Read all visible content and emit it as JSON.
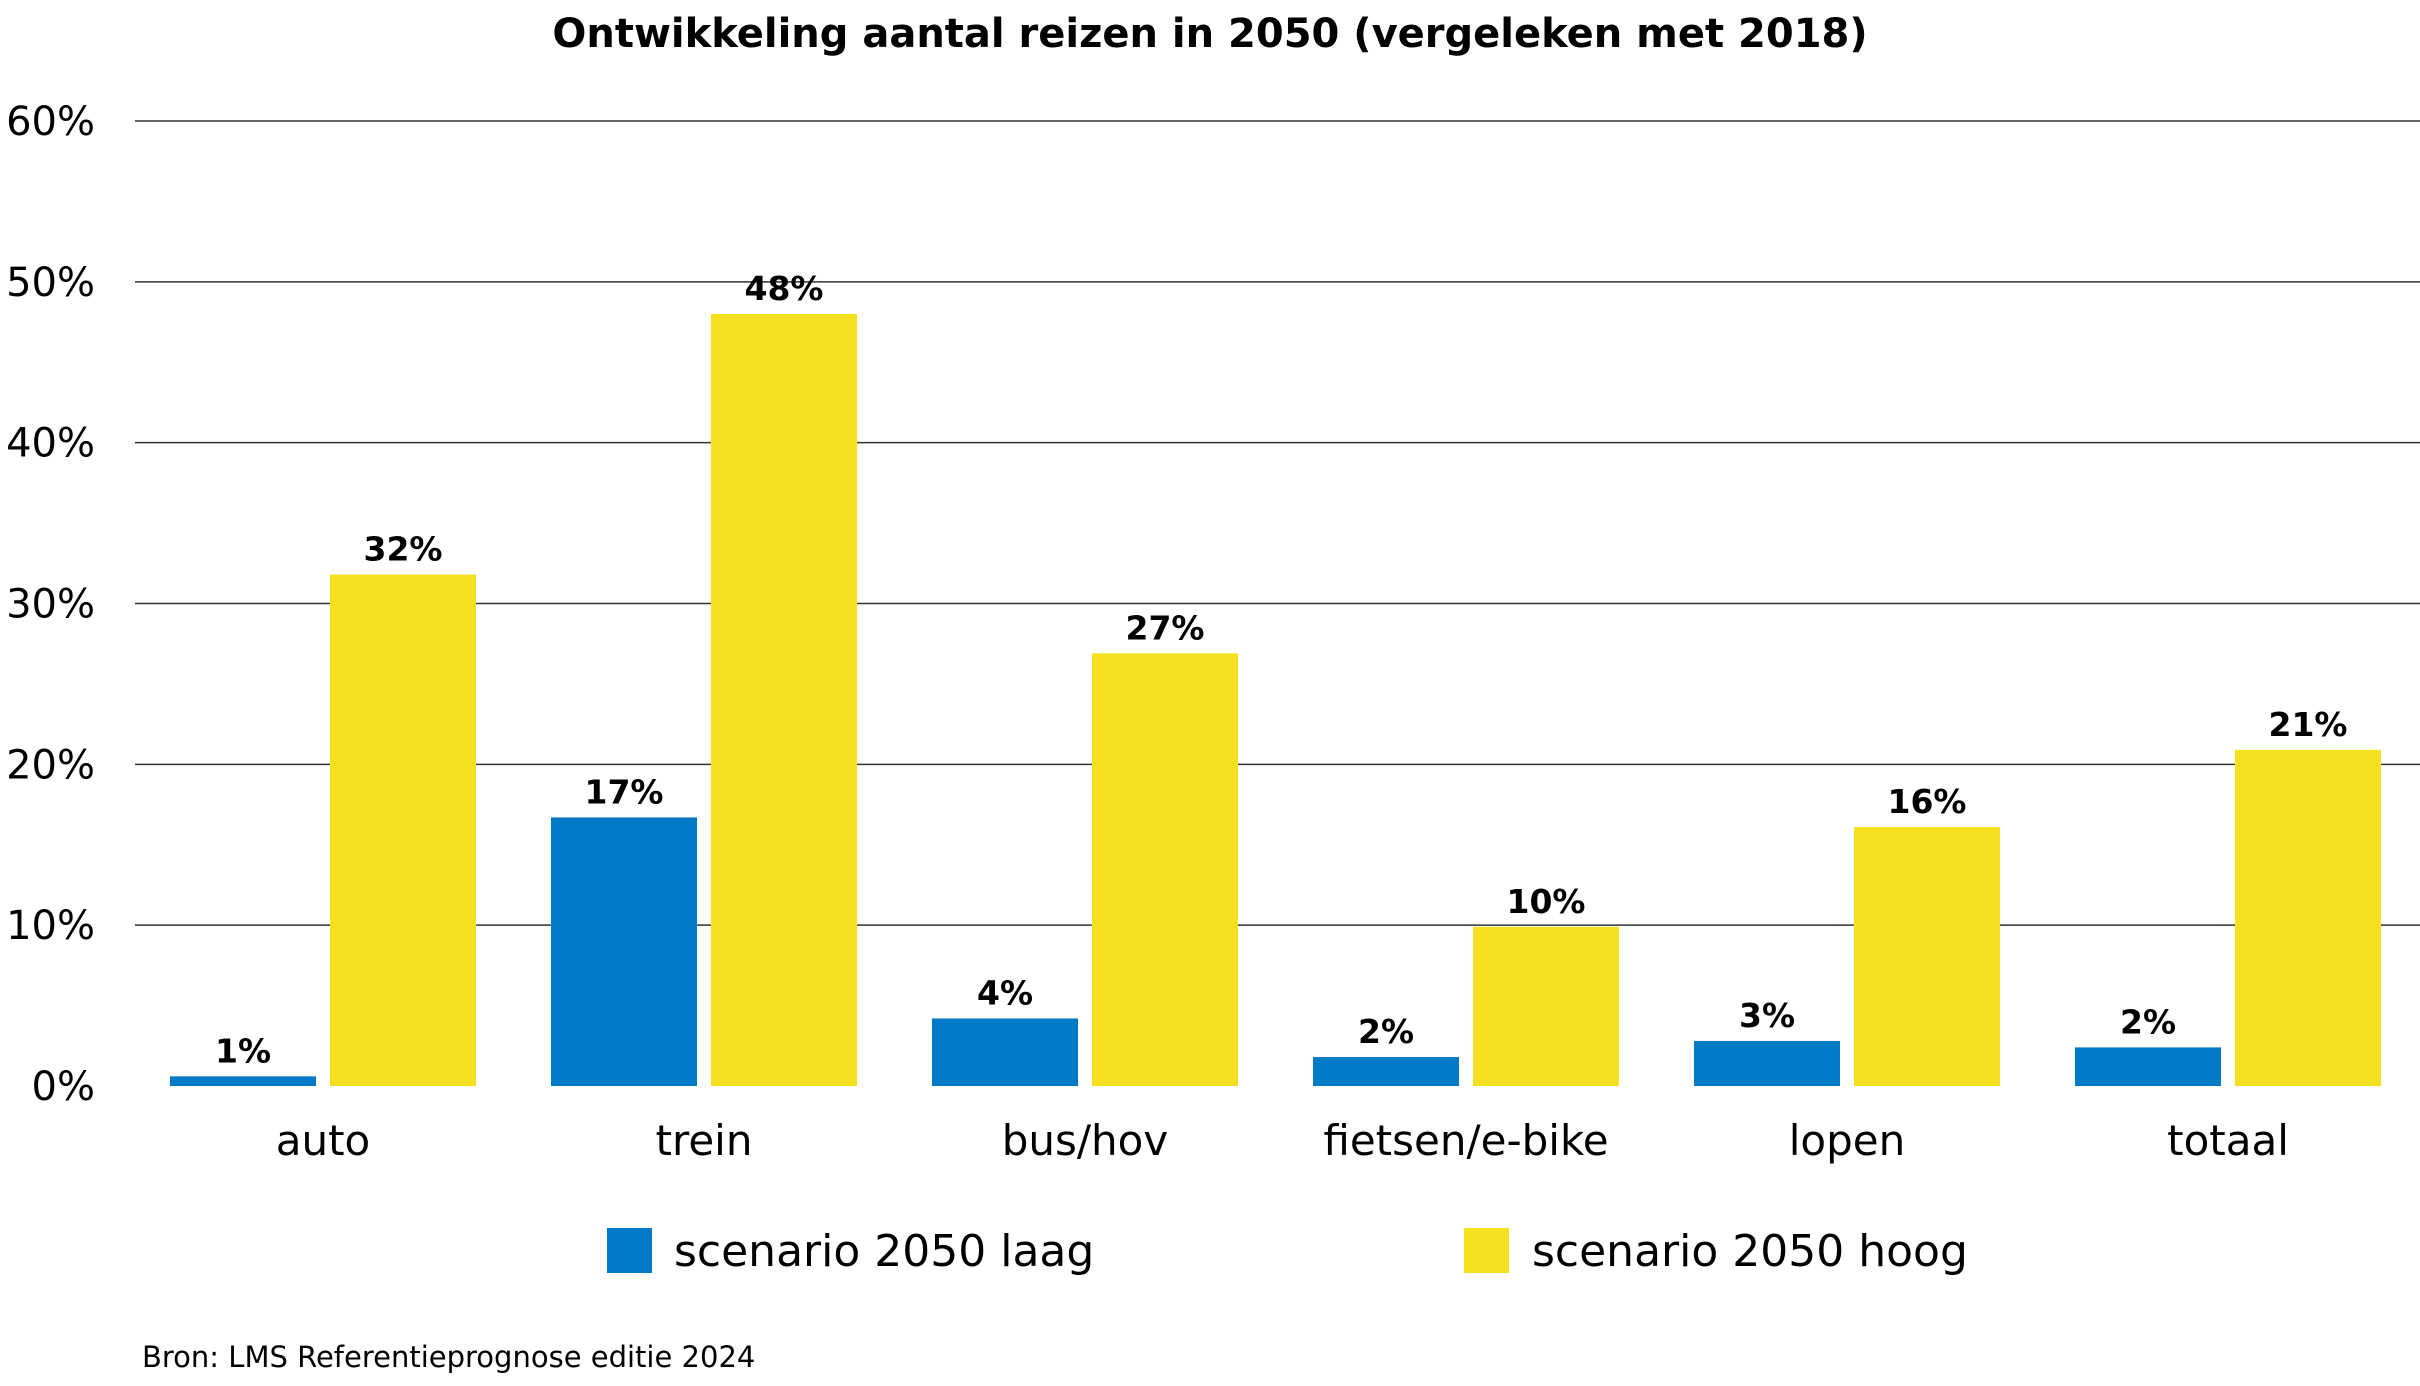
{
  "chart_data": {
    "type": "bar",
    "title": "Ontwikkeling aantal reizen in 2050 (vergeleken met 2018)",
    "categories": [
      "auto",
      "trein",
      "bus/hov",
      "fietsen/e-bike",
      "lopen",
      "totaal"
    ],
    "series": [
      {
        "name": "scenario 2050 laag",
        "color": "#0079C7",
        "values": [
          0.6,
          16.7,
          4.2,
          1.8,
          2.8,
          2.4
        ],
        "labels": [
          "1%",
          "17%",
          "4%",
          "2%",
          "3%",
          "2%"
        ]
      },
      {
        "name": "scenario 2050 hoog",
        "color": "#F5E020",
        "values": [
          31.8,
          48.0,
          26.9,
          9.9,
          16.1,
          20.9
        ],
        "labels": [
          "32%",
          "48%",
          "27%",
          "10%",
          "16%",
          "21%"
        ]
      }
    ],
    "ylim": [
      0,
      60
    ],
    "yticks": [
      0,
      10,
      20,
      30,
      40,
      50,
      60
    ],
    "ytick_labels": [
      "0%",
      "10%",
      "20%",
      "30%",
      "40%",
      "50%",
      "60%"
    ],
    "grid": true,
    "legend_position": "bottom",
    "source": "Bron: LMS Referentieprognose editie 2024"
  }
}
